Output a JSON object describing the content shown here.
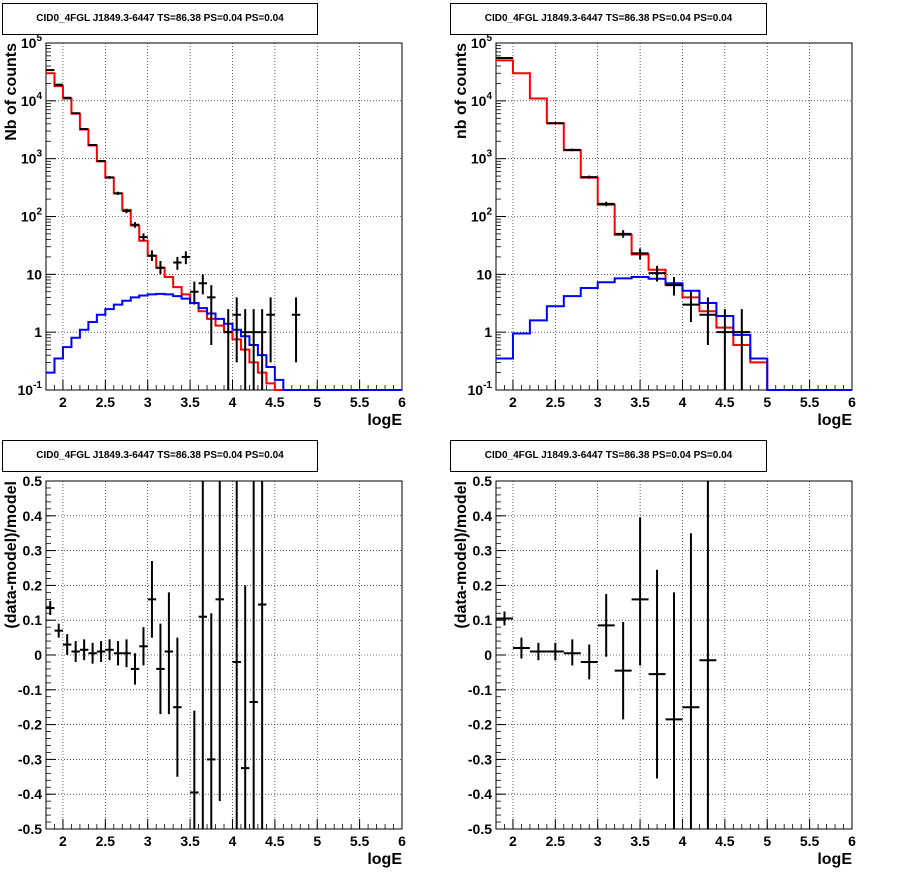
{
  "panels_title": "CID0_4FGL J1849.3-6447 TS=86.38 PS=0.04 PS=0.04",
  "chart_data": [
    {
      "panel": "counts-left",
      "type": "line",
      "title": "CID0_4FGL J1849.3-6447 TS=86.38 PS=0.04 PS=0.04",
      "xlabel": "logE",
      "ylabel": "Nb of counts",
      "xlim": [
        1.8,
        6
      ],
      "ylim": [
        0.1,
        100000
      ],
      "yscale": "log",
      "grid": true,
      "xticks": [
        "2",
        "2.5",
        "3",
        "3.5",
        "4",
        "4.5",
        "5",
        "5.5",
        "6"
      ],
      "yticks": [
        "10^-1",
        "1",
        "10",
        "10^2",
        "10^3",
        "10^4",
        "10^5"
      ],
      "bin_edges": [
        1.8,
        1.9,
        2.0,
        2.1,
        2.2,
        2.3,
        2.4,
        2.5,
        2.6,
        2.7,
        2.8,
        2.9,
        3.0,
        3.1,
        3.2,
        3.3,
        3.4,
        3.5,
        3.6,
        3.7,
        3.8,
        3.9,
        4.0,
        4.1,
        4.2,
        4.3,
        4.4,
        4.5,
        4.6,
        4.7,
        4.8,
        4.9,
        5.0,
        5.1,
        5.2,
        5.3,
        5.4,
        5.5,
        5.6,
        5.7,
        5.8,
        5.9,
        6.0
      ],
      "series": [
        {
          "name": "",
          "color": "#ff0000",
          "style": "step",
          "values": [
            30000,
            18000,
            11000,
            6000,
            3200,
            1700,
            900,
            470,
            250,
            130,
            70,
            38,
            21,
            13,
            9,
            6,
            4.5,
            3.2,
            2.3,
            1.7,
            1.3,
            1.0,
            0.75,
            0.5,
            0.3,
            0.2,
            0.13,
            0.1,
            0.1,
            0.1,
            0.1,
            0.1,
            0.1,
            0.1,
            0.1,
            0.1,
            0.1,
            0.1,
            0.1,
            0.1,
            0.1,
            0.1
          ]
        },
        {
          "name": "",
          "color": "#0000ff",
          "style": "step",
          "values": [
            0.2,
            0.35,
            0.55,
            0.8,
            1.1,
            1.5,
            2.0,
            2.5,
            3.0,
            3.5,
            4.0,
            4.3,
            4.5,
            4.6,
            4.5,
            4.2,
            3.8,
            3.2,
            2.6,
            2.1,
            1.7,
            1.4,
            1.1,
            0.85,
            0.6,
            0.4,
            0.25,
            0.15,
            0.1,
            0.1,
            0.1,
            0.1,
            0.1,
            0.1,
            0.1,
            0.1,
            0.1,
            0.1,
            0.1,
            0.1,
            0.1,
            0.1
          ]
        },
        {
          "name": "",
          "color": "#000000",
          "style": "errorbar",
          "points": [
            {
              "x": 1.85,
              "y": 34000,
              "xerr": 0.05,
              "lo": 33000,
              "hi": 35000
            },
            {
              "x": 1.95,
              "y": 19000,
              "xerr": 0.05,
              "lo": 18500,
              "hi": 19500
            },
            {
              "x": 2.05,
              "y": 11300,
              "xerr": 0.05,
              "lo": 11000,
              "hi": 11600
            },
            {
              "x": 2.15,
              "y": 6100,
              "xerr": 0.05,
              "lo": 5900,
              "hi": 6300
            },
            {
              "x": 2.25,
              "y": 3250,
              "xerr": 0.05,
              "lo": 3150,
              "hi": 3350
            },
            {
              "x": 2.35,
              "y": 1720,
              "xerr": 0.05,
              "lo": 1650,
              "hi": 1790
            },
            {
              "x": 2.45,
              "y": 910,
              "xerr": 0.05,
              "lo": 870,
              "hi": 950
            },
            {
              "x": 2.55,
              "y": 475,
              "xerr": 0.05,
              "lo": 450,
              "hi": 500
            },
            {
              "x": 2.65,
              "y": 252,
              "xerr": 0.05,
              "lo": 236,
              "hi": 268
            },
            {
              "x": 2.75,
              "y": 125,
              "xerr": 0.05,
              "lo": 114,
              "hi": 136
            },
            {
              "x": 2.85,
              "y": 72,
              "xerr": 0.05,
              "lo": 64,
              "hi": 80
            },
            {
              "x": 2.95,
              "y": 44,
              "xerr": 0.05,
              "lo": 38,
              "hi": 51
            },
            {
              "x": 3.05,
              "y": 21,
              "xerr": 0.05,
              "lo": 17,
              "hi": 26
            },
            {
              "x": 3.15,
              "y": 13,
              "xerr": 0.05,
              "lo": 10,
              "hi": 17
            },
            {
              "x": 3.35,
              "y": 16,
              "xerr": 0.05,
              "lo": 12,
              "hi": 20
            },
            {
              "x": 3.45,
              "y": 20,
              "xerr": 0.05,
              "lo": 15,
              "hi": 25
            },
            {
              "x": 3.55,
              "y": 5,
              "xerr": 0.05,
              "lo": 3,
              "hi": 7.5
            },
            {
              "x": 3.65,
              "y": 7,
              "xerr": 0.05,
              "lo": 4.5,
              "hi": 10
            },
            {
              "x": 3.75,
              "y": 4,
              "xerr": 0.05,
              "lo": 0.6,
              "hi": 6.5
            },
            {
              "x": 3.95,
              "y": 1,
              "xerr": 0.05,
              "lo": 0.1,
              "hi": 2.5
            },
            {
              "x": 4.05,
              "y": 2,
              "xerr": 0.05,
              "lo": 0.3,
              "hi": 4
            },
            {
              "x": 4.15,
              "y": 1,
              "xerr": 0.05,
              "lo": 0.1,
              "hi": 2.5
            },
            {
              "x": 4.25,
              "y": 1,
              "xerr": 0.05,
              "lo": 0.1,
              "hi": 2.5
            },
            {
              "x": 4.35,
              "y": 1,
              "xerr": 0.05,
              "lo": 0.1,
              "hi": 2.5
            },
            {
              "x": 4.45,
              "y": 2,
              "xerr": 0.05,
              "lo": 0.3,
              "hi": 4
            },
            {
              "x": 4.75,
              "y": 2,
              "xerr": 0.05,
              "lo": 0.3,
              "hi": 4
            }
          ]
        }
      ]
    },
    {
      "panel": "counts-right",
      "type": "line",
      "title": "CID0_4FGL J1849.3-6447 TS=86.38 PS=0.04 PS=0.04",
      "xlabel": "logE",
      "ylabel": "nb of counts",
      "xlim": [
        1.8,
        6
      ],
      "ylim": [
        0.1,
        100000
      ],
      "yscale": "log",
      "grid": true,
      "xticks": [
        "2",
        "2.5",
        "3",
        "3.5",
        "4",
        "4.5",
        "5",
        "5.5",
        "6"
      ],
      "yticks": [
        "10^-1",
        "1",
        "10",
        "10^2",
        "10^3",
        "10^4",
        "10^5"
      ],
      "bin_edges": [
        1.8,
        2.0,
        2.2,
        2.4,
        2.6,
        2.8,
        3.0,
        3.2,
        3.4,
        3.6,
        3.8,
        4.0,
        4.2,
        4.4,
        4.6,
        4.8,
        5.0,
        5.2,
        5.4,
        5.6,
        5.8,
        6.0
      ],
      "series": [
        {
          "name": "",
          "color": "#ff0000",
          "style": "step",
          "values": [
            50000,
            30000,
            11000,
            4100,
            1400,
            470,
            160,
            48,
            22,
            12,
            6.5,
            4,
            2.3,
            1.2,
            0.6,
            0.3,
            0.1,
            0.1,
            0.1,
            0.1,
            0.1
          ]
        },
        {
          "name": "",
          "color": "#0000ff",
          "style": "step",
          "values": [
            0.35,
            0.95,
            1.6,
            2.8,
            4.2,
            5.8,
            7.3,
            8.5,
            9,
            8.4,
            7,
            5.2,
            3.2,
            1.9,
            0.9,
            0.35,
            0.1,
            0.1,
            0.1,
            0.1,
            0.1
          ]
        },
        {
          "name": "",
          "color": "#000000",
          "style": "errorbar",
          "points": [
            {
              "x": 1.9,
              "y": 55000,
              "xerr": 0.1,
              "lo": 54000,
              "hi": 56000
            },
            {
              "x": 2.5,
              "y": 4100,
              "xerr": 0.1,
              "lo": 3950,
              "hi": 4250
            },
            {
              "x": 2.7,
              "y": 1420,
              "xerr": 0.1,
              "lo": 1350,
              "hi": 1490
            },
            {
              "x": 2.9,
              "y": 480,
              "xerr": 0.1,
              "lo": 450,
              "hi": 510
            },
            {
              "x": 3.1,
              "y": 165,
              "xerr": 0.1,
              "lo": 150,
              "hi": 180
            },
            {
              "x": 3.3,
              "y": 50,
              "xerr": 0.1,
              "lo": 43,
              "hi": 58
            },
            {
              "x": 3.5,
              "y": 23,
              "xerr": 0.1,
              "lo": 18,
              "hi": 28
            },
            {
              "x": 3.7,
              "y": 10.5,
              "xerr": 0.1,
              "lo": 7.5,
              "hi": 14
            },
            {
              "x": 3.9,
              "y": 6.5,
              "xerr": 0.1,
              "lo": 4.3,
              "hi": 9
            },
            {
              "x": 4.1,
              "y": 3,
              "xerr": 0.1,
              "lo": 1.5,
              "hi": 5
            },
            {
              "x": 4.3,
              "y": 2,
              "xerr": 0.1,
              "lo": 0.6,
              "hi": 4
            },
            {
              "x": 4.5,
              "y": 1,
              "xerr": 0.1,
              "lo": 0.1,
              "hi": 2.5
            },
            {
              "x": 4.7,
              "y": 1,
              "xerr": 0.1,
              "lo": 0.1,
              "hi": 2.5
            }
          ]
        }
      ]
    },
    {
      "panel": "residual-left",
      "type": "scatter",
      "title": "CID0_4FGL J1849.3-6447 TS=86.38 PS=0.04 PS=0.04",
      "xlabel": "logE",
      "ylabel": "(data-model)/model",
      "xlim": [
        1.8,
        6
      ],
      "ylim": [
        -0.5,
        0.5
      ],
      "grid": true,
      "xticks": [
        "2",
        "2.5",
        "3",
        "3.5",
        "4",
        "4.5",
        "5",
        "5.5",
        "6"
      ],
      "yticks": [
        "-0.5",
        "-0.4",
        "-0.3",
        "-0.2",
        "-0.1",
        "0",
        "0.1",
        "0.2",
        "0.3",
        "0.4",
        "0.5"
      ],
      "series": [
        {
          "name": "",
          "color": "#000000",
          "style": "errorbar",
          "points": [
            {
              "x": 1.85,
              "y": 0.135,
              "xerr": 0.05,
              "lo": 0.115,
              "hi": 0.155
            },
            {
              "x": 1.95,
              "y": 0.07,
              "xerr": 0.05,
              "lo": 0.05,
              "hi": 0.09
            },
            {
              "x": 2.05,
              "y": 0.03,
              "xerr": 0.05,
              "lo": 0.0,
              "hi": 0.06
            },
            {
              "x": 2.15,
              "y": 0.01,
              "xerr": 0.05,
              "lo": -0.02,
              "hi": 0.04
            },
            {
              "x": 2.25,
              "y": 0.015,
              "xerr": 0.05,
              "lo": -0.015,
              "hi": 0.045
            },
            {
              "x": 2.35,
              "y": 0.005,
              "xerr": 0.05,
              "lo": -0.025,
              "hi": 0.035
            },
            {
              "x": 2.45,
              "y": 0.01,
              "xerr": 0.05,
              "lo": -0.02,
              "hi": 0.04
            },
            {
              "x": 2.55,
              "y": 0.015,
              "xerr": 0.05,
              "lo": -0.015,
              "hi": 0.045
            },
            {
              "x": 2.65,
              "y": 0.005,
              "xerr": 0.05,
              "lo": -0.03,
              "hi": 0.04
            },
            {
              "x": 2.75,
              "y": 0.005,
              "xerr": 0.05,
              "lo": -0.035,
              "hi": 0.045
            },
            {
              "x": 2.85,
              "y": -0.04,
              "xerr": 0.05,
              "lo": -0.085,
              "hi": 0.005
            },
            {
              "x": 2.95,
              "y": 0.025,
              "xerr": 0.05,
              "lo": -0.03,
              "hi": 0.08
            },
            {
              "x": 3.05,
              "y": 0.16,
              "xerr": 0.05,
              "lo": 0.05,
              "hi": 0.27
            },
            {
              "x": 3.15,
              "y": -0.04,
              "xerr": 0.05,
              "lo": -0.17,
              "hi": 0.09
            },
            {
              "x": 3.25,
              "y": 0.01,
              "xerr": 0.05,
              "lo": -0.17,
              "hi": 0.18
            },
            {
              "x": 3.35,
              "y": -0.15,
              "xerr": 0.05,
              "lo": -0.35,
              "hi": 0.05
            },
            {
              "x": 3.55,
              "y": -0.395,
              "xerr": 0.05,
              "lo": -0.5,
              "hi": -0.16
            },
            {
              "x": 3.65,
              "y": 0.11,
              "xerr": 0.05,
              "lo": -0.5,
              "hi": 0.5
            },
            {
              "x": 3.75,
              "y": -0.3,
              "xerr": 0.05,
              "lo": -0.5,
              "hi": 0.12
            },
            {
              "x": 3.85,
              "y": 0.16,
              "xerr": 0.05,
              "lo": -0.42,
              "hi": 0.5
            },
            {
              "x": 4.05,
              "y": -0.02,
              "xerr": 0.05,
              "lo": -0.5,
              "hi": 0.5
            },
            {
              "x": 4.15,
              "y": -0.325,
              "xerr": 0.05,
              "lo": -0.5,
              "hi": 0.2
            },
            {
              "x": 4.25,
              "y": -0.135,
              "xerr": 0.05,
              "lo": -0.5,
              "hi": 0.5
            },
            {
              "x": 4.35,
              "y": 0.145,
              "xerr": 0.05,
              "lo": -0.5,
              "hi": 0.5
            }
          ]
        }
      ]
    },
    {
      "panel": "residual-right",
      "type": "scatter",
      "title": "CID0_4FGL J1849.3-6447 TS=86.38 PS=0.04 PS=0.04",
      "xlabel": "logE",
      "ylabel": "(data-model)/model",
      "xlim": [
        1.8,
        6
      ],
      "ylim": [
        -0.5,
        0.5
      ],
      "grid": true,
      "xticks": [
        "2",
        "2.5",
        "3",
        "3.5",
        "4",
        "4.5",
        "5",
        "5.5",
        "6"
      ],
      "yticks": [
        "-0.5",
        "-0.4",
        "-0.3",
        "-0.2",
        "-0.1",
        "0",
        "0.1",
        "0.2",
        "0.3",
        "0.4",
        "0.5"
      ],
      "series": [
        {
          "name": "",
          "color": "#000000",
          "style": "errorbar",
          "points": [
            {
              "x": 1.9,
              "y": 0.105,
              "xerr": 0.1,
              "lo": 0.085,
              "hi": 0.125
            },
            {
              "x": 2.1,
              "y": 0.02,
              "xerr": 0.1,
              "lo": -0.01,
              "hi": 0.05
            },
            {
              "x": 2.3,
              "y": 0.01,
              "xerr": 0.1,
              "lo": -0.015,
              "hi": 0.035
            },
            {
              "x": 2.5,
              "y": 0.01,
              "xerr": 0.1,
              "lo": -0.015,
              "hi": 0.035
            },
            {
              "x": 2.7,
              "y": 0.005,
              "xerr": 0.1,
              "lo": -0.03,
              "hi": 0.045
            },
            {
              "x": 2.9,
              "y": -0.02,
              "xerr": 0.1,
              "lo": -0.07,
              "hi": 0.03
            },
            {
              "x": 3.1,
              "y": 0.085,
              "xerr": 0.1,
              "lo": -0.005,
              "hi": 0.175
            },
            {
              "x": 3.3,
              "y": -0.045,
              "xerr": 0.1,
              "lo": -0.185,
              "hi": 0.095
            },
            {
              "x": 3.5,
              "y": 0.16,
              "xerr": 0.1,
              "lo": -0.03,
              "hi": 0.395
            },
            {
              "x": 3.7,
              "y": -0.055,
              "xerr": 0.1,
              "lo": -0.355,
              "hi": 0.245
            },
            {
              "x": 3.9,
              "y": -0.185,
              "xerr": 0.1,
              "lo": -0.5,
              "hi": 0.18
            },
            {
              "x": 4.1,
              "y": -0.15,
              "xerr": 0.1,
              "lo": -0.5,
              "hi": 0.35
            },
            {
              "x": 4.3,
              "y": -0.015,
              "xerr": 0.1,
              "lo": -0.5,
              "hi": 0.5
            }
          ]
        }
      ]
    }
  ]
}
